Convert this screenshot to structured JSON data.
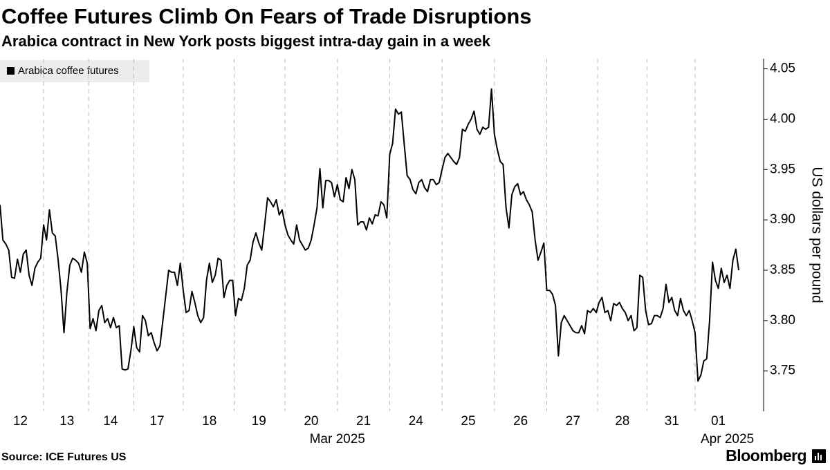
{
  "chart_data": {
    "type": "line",
    "title": "Coffee Futures Climb On Fears of Trade Disruptions",
    "subtitle": "Arabica contract in New York posts biggest intra-day gain in a week",
    "y_label": "US dollars per pound",
    "source": "Source: ICE Futures US",
    "brand": "Bloomberg",
    "month_labels": [
      "Mar 2025",
      "Apr 2025"
    ],
    "legend": "top-left",
    "grid": "x",
    "ylim": [
      3.71,
      4.06
    ],
    "yticks": [
      {
        "value": 3.75,
        "label": "3.75"
      },
      {
        "value": 3.8,
        "label": "3.80"
      },
      {
        "value": 3.85,
        "label": "3.85"
      },
      {
        "value": 3.9,
        "label": "3.90"
      },
      {
        "value": 3.95,
        "label": "3.95"
      },
      {
        "value": 4.0,
        "label": "4.00"
      },
      {
        "value": 4.05,
        "label": "4.05"
      }
    ],
    "categories": [
      null,
      null,
      null,
      null,
      null,
      null,
      null,
      "12",
      null,
      null,
      null,
      null,
      null,
      null,
      null,
      null,
      null,
      null,
      null,
      null,
      null,
      null,
      null,
      "13",
      null,
      null,
      null,
      null,
      null,
      null,
      null,
      null,
      null,
      null,
      null,
      null,
      null,
      null,
      "14",
      null,
      null,
      null,
      null,
      null,
      null,
      null,
      null,
      null,
      null,
      null,
      null,
      null,
      null,
      null,
      "17",
      null,
      null,
      null,
      null,
      null,
      null,
      null,
      null,
      null,
      null,
      null,
      null,
      null,
      null,
      null,
      null,
      null,
      "18",
      null,
      null,
      null,
      null,
      null,
      null,
      null,
      null,
      null,
      null,
      null,
      null,
      null,
      null,
      null,
      null,
      "19",
      null,
      null,
      null,
      null,
      null,
      null,
      null,
      null,
      null,
      null,
      null,
      null,
      null,
      null,
      null,
      null,
      null,
      "20",
      null,
      null,
      null,
      null,
      null,
      null,
      null,
      null,
      null,
      null,
      null,
      null,
      null,
      null,
      null,
      null,
      null,
      "21",
      null,
      null,
      null,
      null,
      null,
      null,
      null,
      null,
      null,
      null,
      null,
      null,
      null,
      null,
      null,
      null,
      null,
      "24",
      null,
      null,
      null,
      null,
      null,
      null,
      null,
      null,
      null,
      null,
      null,
      null,
      null,
      null,
      null,
      null,
      null,
      "25",
      null,
      null,
      null,
      null,
      null,
      null,
      null,
      null,
      null,
      null,
      null,
      null,
      null,
      null,
      null,
      null,
      null,
      "26",
      null,
      null,
      null,
      null,
      null,
      null,
      null,
      null,
      null,
      null,
      null,
      null,
      null,
      null,
      null,
      null,
      null,
      "27",
      null,
      null,
      null,
      null,
      null,
      null,
      null,
      null,
      null,
      null,
      null,
      null,
      null,
      null,
      null,
      null,
      "28",
      null,
      null,
      null,
      null,
      null,
      null,
      null,
      null,
      null,
      null,
      null,
      null,
      null,
      null,
      null,
      null,
      "31",
      null,
      null,
      null,
      null,
      null,
      null,
      null,
      null,
      null,
      null,
      null,
      null,
      null,
      null,
      null,
      "01",
      null,
      null,
      null,
      null,
      null,
      null,
      null
    ],
    "series": [
      {
        "name": "Arabica coffee futures",
        "color": "#000000",
        "values": [
          3.915,
          3.88,
          3.876,
          3.87,
          3.843,
          3.842,
          3.861,
          3.848,
          3.866,
          3.87,
          3.845,
          3.835,
          3.852,
          3.858,
          3.862,
          3.895,
          3.88,
          3.91,
          3.887,
          3.884,
          3.86,
          3.83,
          3.788,
          3.828,
          3.855,
          3.862,
          3.86,
          3.857,
          3.848,
          3.868,
          3.857,
          3.792,
          3.802,
          3.79,
          3.81,
          3.815,
          3.798,
          3.802,
          3.793,
          3.803,
          3.793,
          3.795,
          3.752,
          3.751,
          3.752,
          3.77,
          3.794,
          3.773,
          3.769,
          3.805,
          3.8,
          3.785,
          3.788,
          3.778,
          3.77,
          3.775,
          3.8,
          3.825,
          3.85,
          3.848,
          3.848,
          3.835,
          3.857,
          3.83,
          3.808,
          3.81,
          3.829,
          3.818,
          3.805,
          3.798,
          3.803,
          3.84,
          3.857,
          3.838,
          3.845,
          3.862,
          3.86,
          3.823,
          3.835,
          3.84,
          3.84,
          3.805,
          3.822,
          3.82,
          3.832,
          3.855,
          3.86,
          3.878,
          3.887,
          3.877,
          3.87,
          3.895,
          3.922,
          3.918,
          3.913,
          3.92,
          3.905,
          3.91,
          3.895,
          3.885,
          3.88,
          3.876,
          3.895,
          3.88,
          3.875,
          3.87,
          3.872,
          3.88,
          3.895,
          3.912,
          3.951,
          3.912,
          3.939,
          3.939,
          3.937,
          3.923,
          3.935,
          3.92,
          3.918,
          3.942,
          3.931,
          3.95,
          3.94,
          3.895,
          3.898,
          3.898,
          3.89,
          3.902,
          3.896,
          3.905,
          3.904,
          3.918,
          3.915,
          3.902,
          3.965,
          3.976,
          4.01,
          4.005,
          4.007,
          3.975,
          3.944,
          3.94,
          3.93,
          3.926,
          3.937,
          3.94,
          3.932,
          3.928,
          3.94,
          3.94,
          3.935,
          3.937,
          3.95,
          3.962,
          3.966,
          3.962,
          3.958,
          3.955,
          3.962,
          3.99,
          3.988,
          3.995,
          4.0,
          4.008,
          3.99,
          3.985,
          3.992,
          3.99,
          3.992,
          4.03,
          3.985,
          3.97,
          3.958,
          3.955,
          3.912,
          3.892,
          3.925,
          3.933,
          3.936,
          3.925,
          3.928,
          3.92,
          3.915,
          3.908,
          3.88,
          3.86,
          3.868,
          3.877,
          3.83,
          3.83,
          3.826,
          3.815,
          3.765,
          3.798,
          3.805,
          3.8,
          3.795,
          3.79,
          3.788,
          3.788,
          3.795,
          3.787,
          3.81,
          3.808,
          3.812,
          3.808,
          3.818,
          3.823,
          3.808,
          3.81,
          3.8,
          3.817,
          3.815,
          3.818,
          3.812,
          3.808,
          3.8,
          3.805,
          3.79,
          3.793,
          3.845,
          3.843,
          3.81,
          3.796,
          3.797,
          3.805,
          3.805,
          3.803,
          3.812,
          3.836,
          3.818,
          3.823,
          3.81,
          3.805,
          3.822,
          3.81,
          3.805,
          3.81,
          3.8,
          3.788,
          3.74,
          3.746,
          3.76,
          3.762,
          3.8,
          3.858,
          3.84,
          3.832,
          3.852,
          3.838,
          3.845,
          3.832,
          3.86,
          3.871,
          3.85
        ]
      }
    ]
  }
}
